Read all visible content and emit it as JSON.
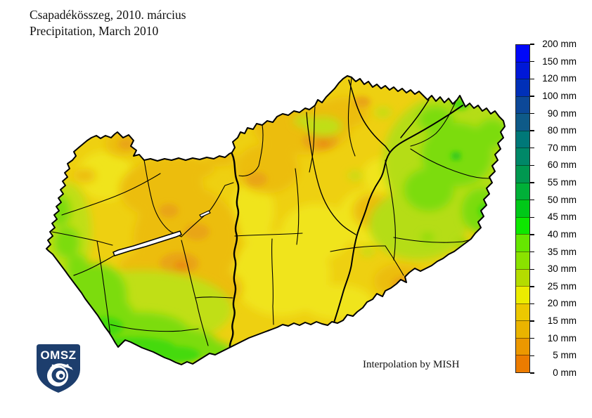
{
  "title": {
    "line1": "Csapadékösszeg, 2010. március",
    "line2": "Precipitation, March 2010"
  },
  "attribution": "Interpolation by MISH",
  "logo": {
    "text": "OMSZ",
    "shield_color": "#1d3e6d"
  },
  "legend": {
    "unit": "mm",
    "labels": [
      "200 mm",
      "150 mm",
      "120 mm",
      "100 mm",
      "90 mm",
      "80 mm",
      "70 mm",
      "60 mm",
      "55 mm",
      "50 mm",
      "45 mm",
      "40 mm",
      "35 mm",
      "30 mm",
      "25 mm",
      "20 mm",
      "15 mm",
      "10 mm",
      "5 mm",
      "0 mm"
    ],
    "segment_colors_top_to_bottom": [
      "#0008f8",
      "#0018d8",
      "#0030b8",
      "#0c4898",
      "#0e5a88",
      "#007878",
      "#008868",
      "#009850",
      "#00b038",
      "#00c818",
      "#0ee800",
      "#66e600",
      "#8ae200",
      "#b4dc00",
      "#ecec00",
      "#ecc800",
      "#eab400",
      "#ec9800",
      "#ec7c00"
    ]
  },
  "map": {
    "palette": {
      "base": "#eed011",
      "yellow": "#f0e41c",
      "yellow_green": "#c0df13",
      "ne_yellow_green": "#b5dd15",
      "green": "#7cdc0e",
      "bright_green": "#45da0a",
      "dark_green_dot": "#2db32d",
      "orange": "#ecbd0e",
      "deep_orange": "#e9a514",
      "deepest_orange": "#ea8d0c",
      "water": "#ffffff",
      "line": "#000000"
    }
  }
}
